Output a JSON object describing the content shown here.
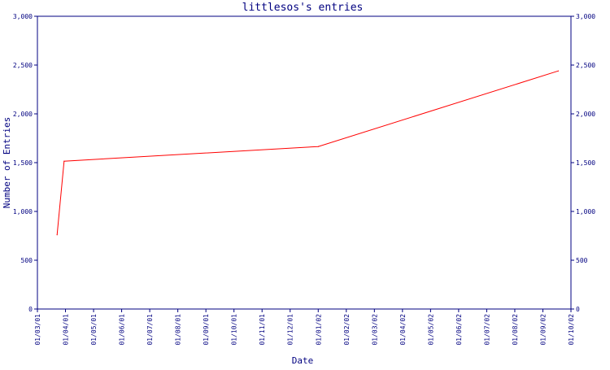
{
  "chart_data": {
    "type": "line",
    "title": "littlesos's entries",
    "xlabel": "Date",
    "ylabel": "Number of Entries",
    "ylim": [
      0,
      3000
    ],
    "xlim": [
      "01/03/01",
      "01/10/02"
    ],
    "y_ticks": [
      0,
      500,
      1000,
      1500,
      2000,
      2500,
      3000
    ],
    "y_tick_labels": [
      "0",
      "500",
      "1,000",
      "1,500",
      "2,000",
      "2,500",
      "3,000"
    ],
    "x_tick_labels": [
      "01/03/01",
      "01/04/01",
      "01/05/01",
      "01/06/01",
      "01/07/01",
      "01/08/01",
      "01/09/01",
      "01/10/01",
      "01/11/01",
      "01/12/01",
      "01/01/02",
      "01/02/02",
      "01/03/02",
      "01/04/02",
      "01/05/02",
      "01/06/02",
      "01/07/02",
      "01/08/02",
      "01/09/02",
      "01/10/02"
    ],
    "grid": false,
    "series": [
      {
        "color": "#ff0000",
        "points": [
          {
            "x": 0.7,
            "y": 760
          },
          {
            "x": 0.95,
            "y": 1515
          },
          {
            "x": 10.0,
            "y": 1665
          },
          {
            "x": 18.55,
            "y": 2440
          }
        ]
      }
    ],
    "colors": {
      "axis": "#000080",
      "line": "#ff0000",
      "background": "#ffffff"
    }
  }
}
